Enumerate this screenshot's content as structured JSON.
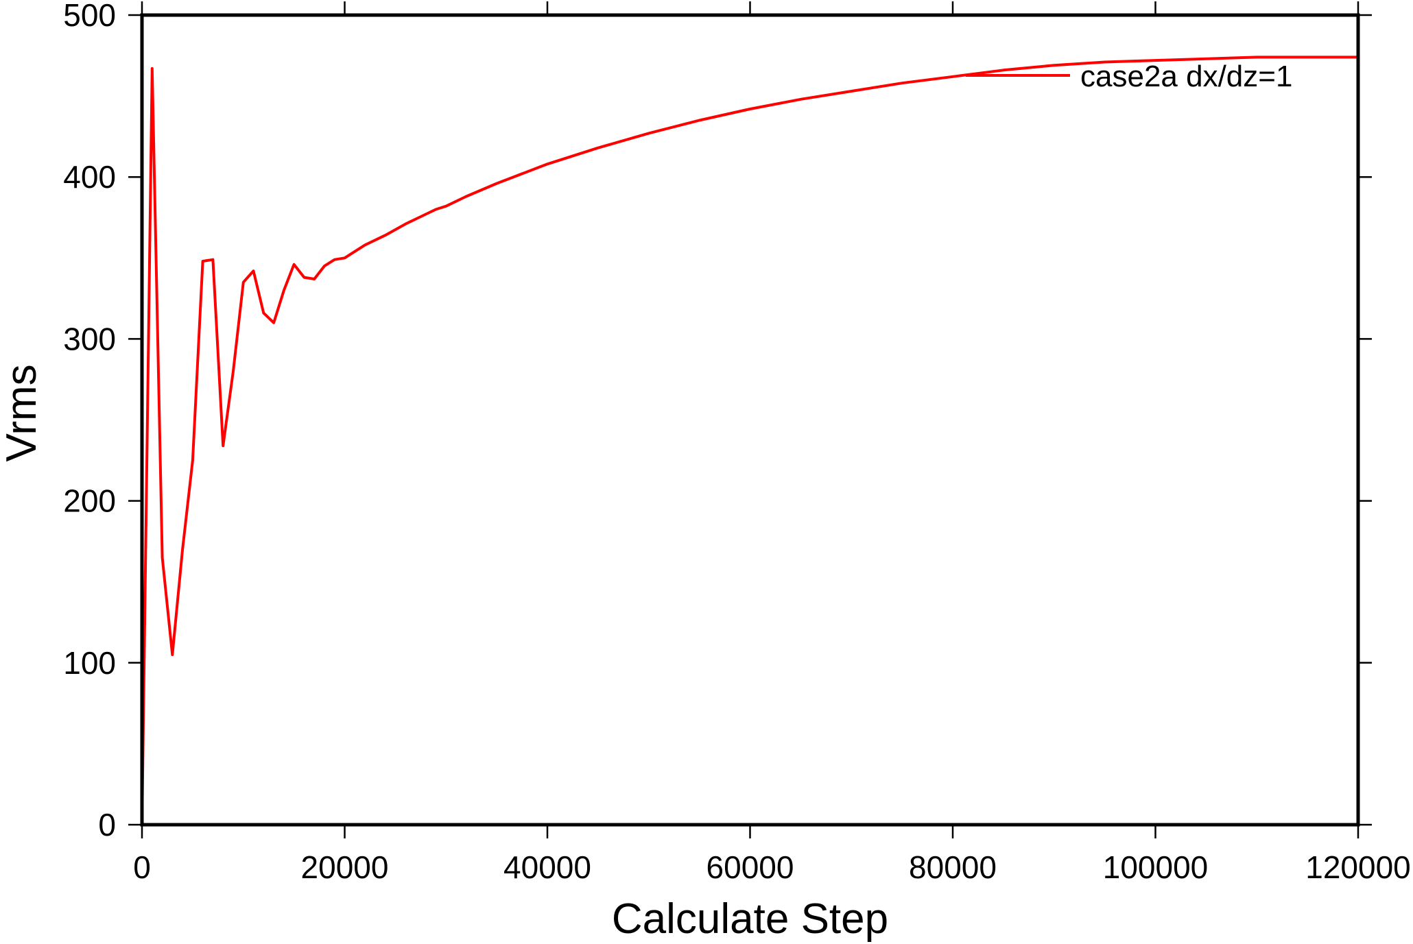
{
  "chart_data": {
    "type": "line",
    "title": "",
    "xlabel": "Calculate Step",
    "ylabel": "Vrms",
    "xlim": [
      0,
      120000
    ],
    "ylim": [
      0,
      500
    ],
    "xticks": [
      0,
      20000,
      40000,
      60000,
      80000,
      100000,
      120000
    ],
    "yticks": [
      0,
      100,
      200,
      300,
      400,
      500
    ],
    "xtick_labels": [
      "0",
      "20000",
      "40000",
      "60000",
      "80000",
      "100000",
      "120000"
    ],
    "ytick_labels": [
      "0",
      "100",
      "200",
      "300",
      "400",
      "500"
    ],
    "grid": false,
    "legend_position": "top-right",
    "series": [
      {
        "name": "case2a dx/dz=1",
        "color": "#ff0000",
        "x": [
          0,
          1000,
          2000,
          3000,
          4000,
          5000,
          6000,
          7000,
          8000,
          9000,
          10000,
          11000,
          12000,
          13000,
          14000,
          15000,
          16000,
          17000,
          18000,
          19000,
          20000,
          22000,
          24000,
          26000,
          28000,
          29000,
          30000,
          32000,
          35000,
          40000,
          45000,
          50000,
          55000,
          60000,
          65000,
          70000,
          75000,
          80000,
          85000,
          90000,
          95000,
          100000,
          110000,
          120000
        ],
        "y": [
          0,
          467,
          165,
          105,
          170,
          225,
          348,
          349,
          234,
          280,
          335,
          342,
          316,
          310,
          330,
          346,
          338,
          337,
          345,
          349,
          350,
          358,
          364,
          371,
          377,
          380,
          382,
          388,
          396,
          408,
          418,
          427,
          435,
          442,
          448,
          453,
          458,
          462,
          466,
          469,
          471,
          472,
          474,
          474
        ]
      }
    ]
  }
}
